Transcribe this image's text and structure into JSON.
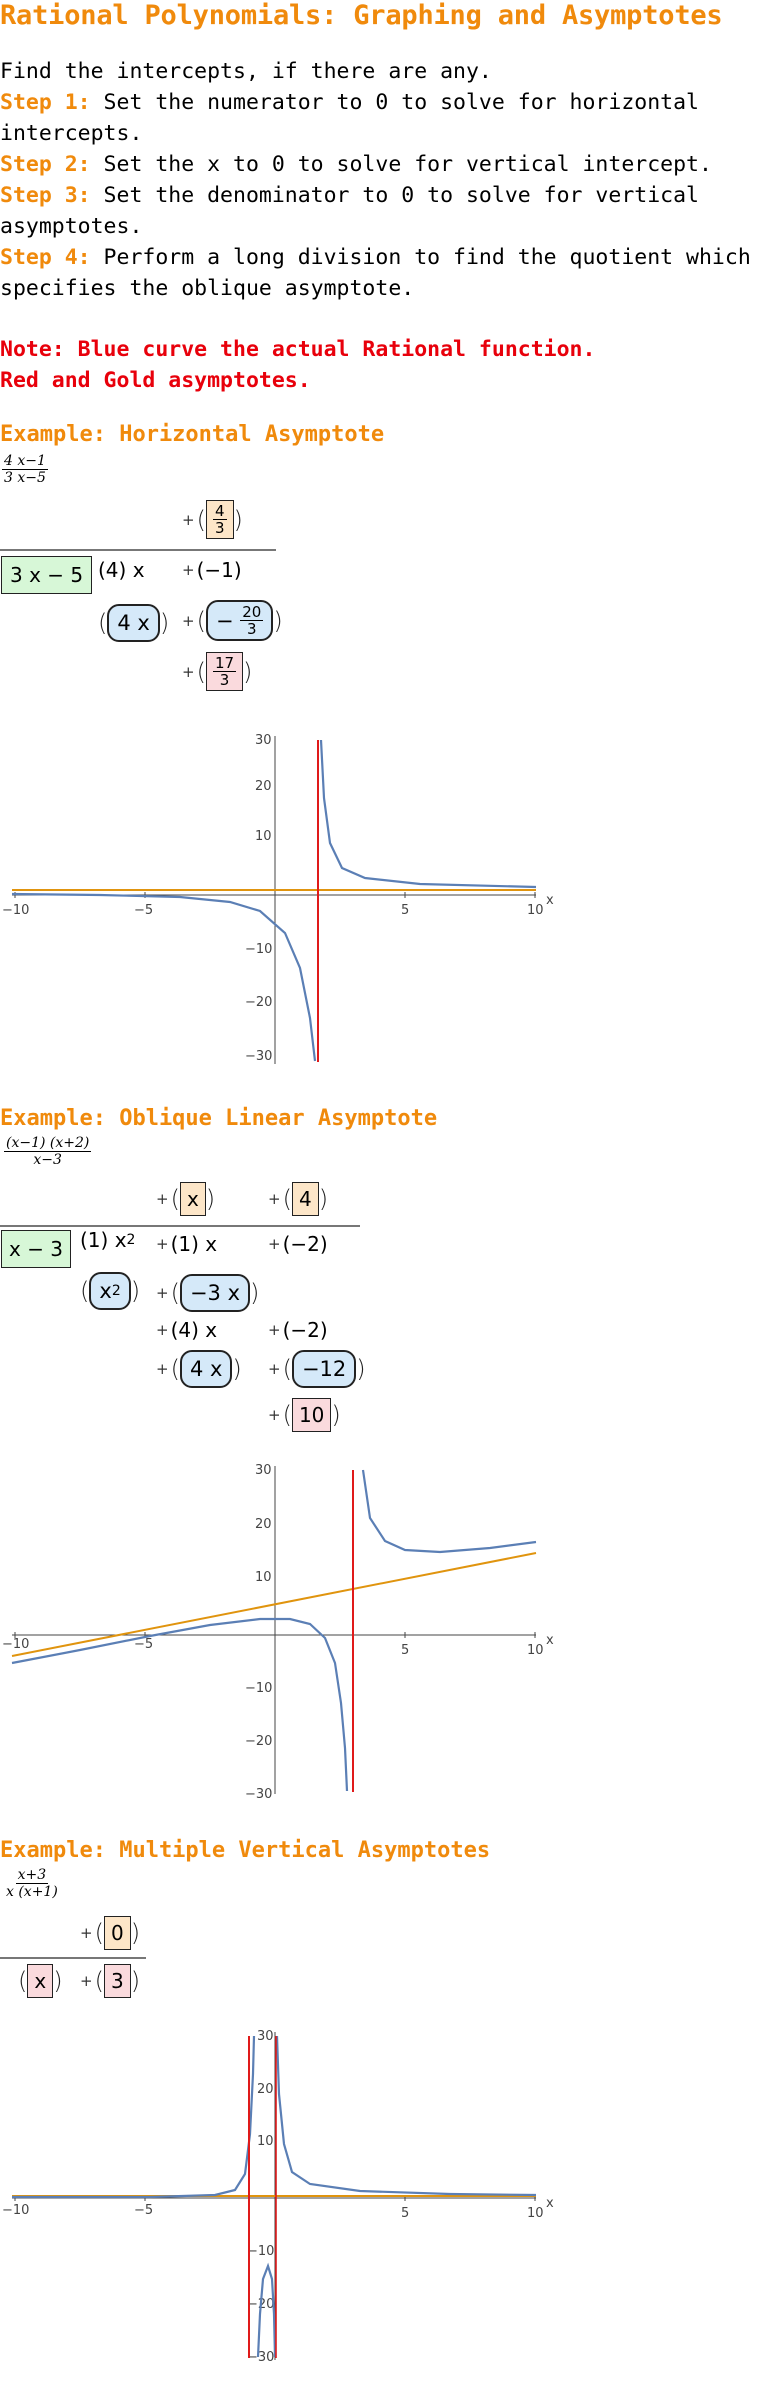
{
  "title": "Rational Polynomials: Graphing and Asymptotes",
  "intro": "Find the intercepts, if there are any.",
  "steps": [
    {
      "label": "Step 1:",
      "text": " Set the numerator to 0 to solve for horizontal intercepts."
    },
    {
      "label": "Step 2:",
      "text": " Set the x to 0 to solve for vertical intercept."
    },
    {
      "label": "Step 3:",
      "text": " Set the denominator to 0 to solve for vertical asymptotes."
    },
    {
      "label": "Step 4:",
      "text": " Perform a long division to find the quotient which specifies the oblique asymptote."
    }
  ],
  "note": {
    "line1": "Note: Blue curve the actual Rational function.",
    "line2": "Red and Gold asymptotes."
  },
  "colors": {
    "orange": "#f08a0c",
    "red": "#e8000b",
    "curve": "#5b7fb5",
    "asymptote_red": "#e01a1a",
    "asymptote_gold": "#e0940e"
  },
  "examples": [
    {
      "title": "Example: Horizontal Asymptote",
      "expr": {
        "num": "4 x−1",
        "den": "3 x−5"
      },
      "division": {
        "plus": "+",
        "quotient": {
          "num": "4",
          "den": "3"
        },
        "divisor": "3 x − 5",
        "dividend_term1": "(4) x",
        "dividend_term2": "(−1)",
        "sub_term1": "4 x",
        "sub_term2": {
          "sign": "−",
          "num": "20",
          "den": "3"
        },
        "remainder": {
          "num": "17",
          "den": "3"
        }
      },
      "graph": {
        "x_ticks": [
          "−10",
          "−5",
          "5",
          "10"
        ],
        "y_ticks": [
          "30",
          "20",
          "10",
          "−10",
          "−20",
          "−30"
        ],
        "x_label": "x"
      }
    },
    {
      "title": "Example: Oblique Linear Asymptote",
      "expr": {
        "num": "(x−1) (x+2)",
        "den": "x−3"
      },
      "division": {
        "plus": "+",
        "quotient1": "x",
        "quotient2": "4",
        "divisor": "x − 3",
        "row1_a": "(1) x",
        "row1_a_exp": "2",
        "row1_b": "(1) x",
        "row1_c": "(−2)",
        "row2_a": "x",
        "row2_a_exp": "2",
        "row2_b": "−3 x",
        "row3_a": "(4) x",
        "row3_b": "(−2)",
        "row4_a": "4 x",
        "row4_b": "−12",
        "remainder": "10"
      },
      "graph": {
        "x_ticks": [
          "−10",
          "−5",
          "5",
          "10"
        ],
        "y_ticks": [
          "30",
          "20",
          "10",
          "−10",
          "−20",
          "−30"
        ],
        "x_label": "x"
      }
    },
    {
      "title": "Example: Multiple Vertical Asymptotes",
      "expr": {
        "num": "x+3",
        "den": "x (x+1)"
      },
      "division": {
        "plus": "+",
        "quotient": "0",
        "divisor": "x",
        "dividend": "3"
      },
      "graph": {
        "x_ticks": [
          "−10",
          "−5",
          "5",
          "10"
        ],
        "y_ticks": [
          "30",
          "20",
          "10",
          "−10",
          "−20",
          "−30"
        ],
        "x_label": "x"
      }
    }
  ]
}
